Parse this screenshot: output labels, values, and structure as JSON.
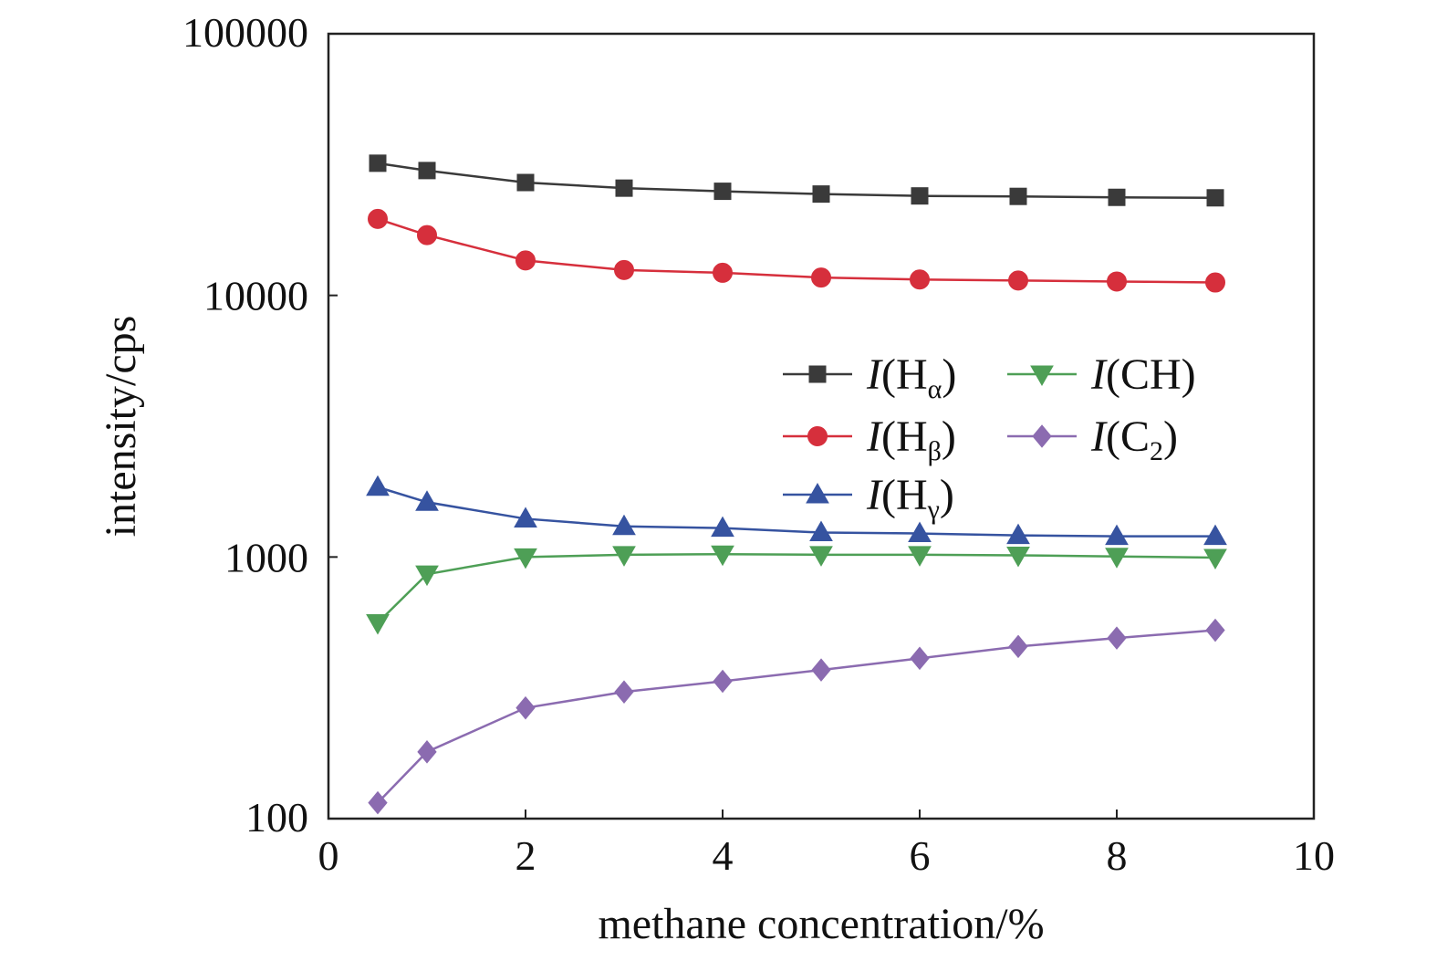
{
  "chart_data": {
    "type": "line",
    "xlabel": "methane concentration/%",
    "ylabel": "intensity/cps",
    "xlim": [
      0,
      10
    ],
    "ylim": [
      100,
      100000
    ],
    "yscale": "log",
    "x_ticks": [
      0,
      2,
      4,
      6,
      8,
      10
    ],
    "y_ticks": [
      100,
      1000,
      10000,
      100000
    ],
    "x_tick_labels": [
      "0",
      "2",
      "4",
      "6",
      "8",
      "10"
    ],
    "y_tick_labels": [
      "100",
      "1000",
      "10000",
      "100000"
    ],
    "grid": false,
    "legend_position": "center-right",
    "x": [
      0.5,
      1,
      2,
      3,
      4,
      5,
      6,
      7,
      8,
      9
    ],
    "series": [
      {
        "name": "I(Hα)",
        "label_main": "H",
        "label_sub": "α",
        "color": "#3a3a3a",
        "marker": "square",
        "values": [
          32000,
          30000,
          27000,
          25700,
          25000,
          24400,
          24000,
          23900,
          23700,
          23600
        ]
      },
      {
        "name": "I(Hβ)",
        "label_main": "H",
        "label_sub": "β",
        "color": "#d62f3c",
        "marker": "circle",
        "values": [
          19600,
          17000,
          13600,
          12500,
          12200,
          11700,
          11500,
          11400,
          11300,
          11200
        ]
      },
      {
        "name": "I(Hγ)",
        "label_main": "H",
        "label_sub": "γ",
        "color": "#3653a0",
        "marker": "triangle-up",
        "values": [
          1850,
          1620,
          1400,
          1310,
          1290,
          1240,
          1230,
          1210,
          1200,
          1200
        ]
      },
      {
        "name": "I(CH)",
        "label_main": "CH",
        "label_sub": "",
        "color": "#4e9f56",
        "marker": "triangle-down",
        "values": [
          560,
          860,
          1000,
          1020,
          1025,
          1020,
          1020,
          1015,
          1005,
          995
        ]
      },
      {
        "name": "I(C2)",
        "label_main": "C",
        "label_sub": "2",
        "color": "#8b6bb0",
        "marker": "diamond",
        "values": [
          115,
          180,
          265,
          305,
          335,
          370,
          410,
          455,
          490,
          525
        ]
      }
    ]
  }
}
